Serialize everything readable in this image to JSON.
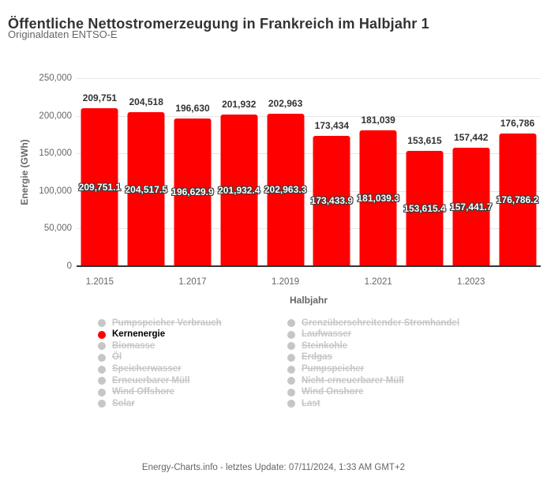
{
  "header": {
    "title": "Öffentliche Nettostromerzeugung in Frankreich im Halbjahr 1",
    "subtitle": "Originaldaten ENTSO-E"
  },
  "chart_data": {
    "type": "bar",
    "title": "Öffentliche Nettostromerzeugung in Frankreich im Halbjahr 1",
    "subtitle": "Originaldaten ENTSO-E",
    "xlabel": "Halbjahr",
    "ylabel": "Energie (GWh)",
    "ylim": [
      0,
      250000
    ],
    "grid": true,
    "legend_position": "bottom",
    "categories": [
      "1.2015",
      "1.2016",
      "1.2017",
      "1.2018",
      "1.2019",
      "1.2020",
      "1.2021",
      "1.2022",
      "1.2023",
      "1.2024"
    ],
    "x_tick_labels": [
      "1.2015",
      "",
      "1.2017",
      "",
      "1.2019",
      "",
      "1.2021",
      "",
      "1.2023",
      ""
    ],
    "y_ticks": [
      {
        "value": 250000,
        "label": "250,000"
      },
      {
        "value": 200000,
        "label": "200,000"
      },
      {
        "value": 150000,
        "label": "150,000"
      },
      {
        "value": 100000,
        "label": "100,000"
      },
      {
        "value": 50000,
        "label": "50,000"
      },
      {
        "value": 0,
        "label": "0"
      }
    ],
    "series": [
      {
        "name": "Kernenergie",
        "color": "#ff0000",
        "values": [
          209751.1,
          204517.5,
          196629.9,
          201932.4,
          202963.3,
          173433.9,
          181039.3,
          153615.4,
          157441.7,
          176786.2
        ],
        "top_labels": [
          "209,751",
          "204,518",
          "196,630",
          "201,932",
          "202,963",
          "173,434",
          "181,039",
          "153,615",
          "157,442",
          "176,786"
        ],
        "inner_labels": [
          "209,751.1",
          "204,517.5",
          "196,629.9",
          "201,932.4",
          "202,963.3",
          "173,433.9",
          "181,039.3",
          "153,615.4",
          "157,441.7",
          "176,786.2"
        ]
      }
    ]
  },
  "legend": {
    "columns": [
      [
        {
          "label": "Pumpspeicher Verbrauch",
          "active": false
        },
        {
          "label": "Kernenergie",
          "active": true
        },
        {
          "label": "Biomasse",
          "active": false
        },
        {
          "label": "Öl",
          "active": false
        },
        {
          "label": "Speicherwasser",
          "active": false
        },
        {
          "label": "Erneuerbarer Müll",
          "active": false
        },
        {
          "label": "Wind Offshore",
          "active": false
        },
        {
          "label": "Solar",
          "active": false
        }
      ],
      [
        {
          "label": "Grenzüberschreitender Stromhandel",
          "active": false
        },
        {
          "label": "Laufwasser",
          "active": false
        },
        {
          "label": "Steinkohle",
          "active": false
        },
        {
          "label": "Erdgas",
          "active": false
        },
        {
          "label": "Pumpspeicher",
          "active": false
        },
        {
          "label": "Nicht-erneuerbarer Müll",
          "active": false
        },
        {
          "label": "Wind Onshore",
          "active": false
        },
        {
          "label": "Last",
          "active": false
        }
      ]
    ]
  },
  "colors": {
    "active_series": "#ff0000",
    "inactive_legend": "#c6c6c6",
    "active_legend_text": "#000000",
    "gridline": "#e6e6e6",
    "axis_line": "#333333",
    "text_primary": "#333333",
    "text_secondary": "#666666"
  },
  "footer": {
    "text": "Energy-Charts.info - letztes Update: 07/11/2024, 1:33 AM GMT+2"
  }
}
